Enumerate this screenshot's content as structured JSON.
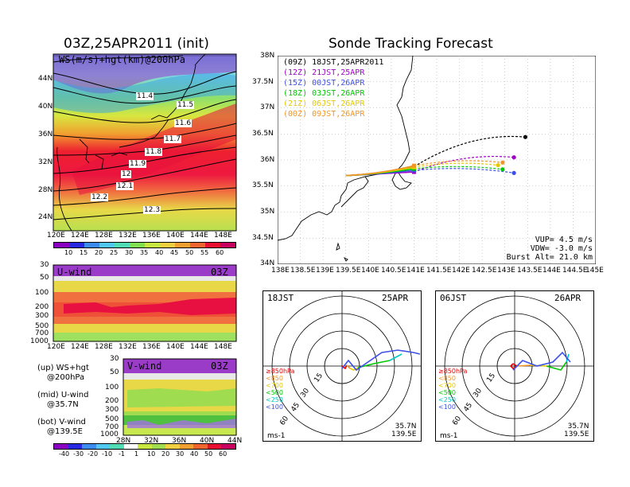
{
  "left": {
    "title": "03Z,25APR2011 (init)",
    "map_label": "WS(m/s)+hgt(km)@200hPa",
    "lat_ticks": [
      "44N",
      "40N",
      "36N",
      "32N",
      "28N",
      "24N"
    ],
    "lon_ticks": [
      "120E",
      "124E",
      "128E",
      "132E",
      "136E",
      "140E",
      "144E",
      "148E"
    ],
    "contours": [
      "11.4",
      "11.5",
      "11.6",
      "11.7",
      "11.8",
      "11.9",
      "12",
      "12.1",
      "12.2",
      "12.3"
    ],
    "colorbar_top": [
      "10",
      "15",
      "20",
      "25",
      "30",
      "35",
      "40",
      "45",
      "50",
      "55",
      "60"
    ],
    "uwind": {
      "label": "U-wind",
      "time": "03Z",
      "p_ticks": [
        "30",
        "50",
        "100",
        "200",
        "300",
        "500",
        "700",
        "1000"
      ],
      "lon_ticks": [
        "120E",
        "124E",
        "128E",
        "132E",
        "136E",
        "140E",
        "144E",
        "148E"
      ]
    },
    "vwind": {
      "label": "V-wind",
      "time": "03Z",
      "p_ticks": [
        "30",
        "50",
        "100",
        "200",
        "300",
        "500",
        "700",
        "1000"
      ],
      "lat_ticks": [
        "28N",
        "32N",
        "36N",
        "40N",
        "44N"
      ]
    },
    "notes": [
      {
        "a": "(up) WS+hgt",
        "b": "@200hPa"
      },
      {
        "a": "(mid) U-wind",
        "b": "@35.7N"
      },
      {
        "a": "(bot) V-wind",
        "b": "@139.5E"
      }
    ],
    "colorbar_bottom": [
      "-40",
      "-30",
      "-20",
      "-10",
      "-1",
      "1",
      "10",
      "20",
      "30",
      "40",
      "50",
      "60"
    ]
  },
  "right": {
    "title": "Sonde Tracking Forecast",
    "lat_ticks": [
      "38N",
      "37.5N",
      "37N",
      "36.5N",
      "36N",
      "35.5N",
      "35N",
      "34.5N",
      "34N"
    ],
    "lon_ticks": [
      "138E",
      "138.5E",
      "139E",
      "139.5E",
      "140E",
      "140.5E",
      "141E",
      "141.5E",
      "142E",
      "142.5E",
      "143E",
      "143.5E",
      "144E",
      "144.5E",
      "145E"
    ],
    "legend": [
      {
        "text": "(09Z) 18JST,25APR2011",
        "color": "#000000"
      },
      {
        "text": "(12Z) 21JST,25APR",
        "color": "#a000c8"
      },
      {
        "text": "(15Z) 00JST,26APR",
        "color": "#3c50e6"
      },
      {
        "text": "(18Z) 03JST,26APR",
        "color": "#00c800"
      },
      {
        "text": "(21Z) 06JST,26APR",
        "color": "#e6c800"
      },
      {
        "text": "(00Z) 09JST,26APR",
        "color": "#f09628"
      }
    ],
    "params": [
      "VUP= 4.5 m/s",
      "VDW= -3.0 m/s",
      "Burst Alt= 21.0 km"
    ]
  },
  "polars": [
    {
      "left": "18JST",
      "right": "25APR",
      "units": "ms-1",
      "loc": [
        "35.7N",
        "139.5E"
      ]
    },
    {
      "left": "06JST",
      "right": "26APR",
      "units": "ms-1",
      "loc": [
        "35.7N",
        "139.5E"
      ]
    }
  ],
  "polar_legend": [
    {
      "text": "≥850hPa",
      "color": "#e60000"
    },
    {
      "text": "<850",
      "color": "#f09628"
    },
    {
      "text": "<700",
      "color": "#e6c800"
    },
    {
      "text": "<500",
      "color": "#00c800"
    },
    {
      "text": "<250",
      "color": "#00c8c8"
    },
    {
      "text": "<100",
      "color": "#3c50e6"
    }
  ],
  "ring_labels": [
    "15",
    "30",
    "45",
    "60"
  ],
  "chart_data": {
    "type": "line",
    "title": "Sonde Tracking Forecast",
    "xlim": [
      138,
      145
    ],
    "ylim": [
      34,
      38
    ],
    "launch": {
      "lon": 139.5,
      "lat": 35.7
    },
    "series": [
      {
        "name": "(09Z) 18JST,25APR2011",
        "color": "#000000",
        "end": {
          "lon": 143.45,
          "lat": 36.44
        }
      },
      {
        "name": "(12Z) 21JST,25APR",
        "color": "#a000c8",
        "end": {
          "lon": 143.2,
          "lat": 36.05
        }
      },
      {
        "name": "(15Z) 00JST,26APR",
        "color": "#3c50e6",
        "end": {
          "lon": 143.2,
          "lat": 35.75
        }
      },
      {
        "name": "(18Z) 03JST,26APR",
        "color": "#00c800",
        "end": {
          "lon": 142.95,
          "lat": 35.82
        }
      },
      {
        "name": "(21Z) 06JST,26APR",
        "color": "#e6c800",
        "end": {
          "lon": 142.85,
          "lat": 35.9
        }
      },
      {
        "name": "(00Z) 09JST,26APR",
        "color": "#f09628",
        "end": {
          "lon": 142.95,
          "lat": 35.95
        }
      }
    ]
  }
}
